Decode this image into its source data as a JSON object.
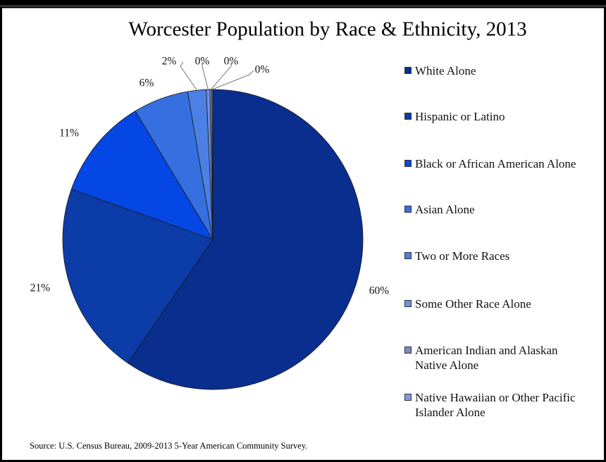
{
  "chart_data": {
    "type": "pie",
    "title": "Worcester Population by Race & Ethnicity, 2013",
    "source": "Source:  U.S. Census Bureau, 2009-2013 5-Year American Community Survey.",
    "categories": [
      "White Alone",
      "Hispanic or Latino",
      "Black or African American Alone",
      "Asian Alone",
      "Two or More Races",
      "Some Other Race Alone",
      "American Indian and Alaskan Native Alone",
      "Native Hawaiian or Other Pacific Islander Alone"
    ],
    "values": [
      60,
      21,
      11,
      6,
      2,
      0.4,
      0.2,
      0.1
    ],
    "value_labels": [
      "60%",
      "21%",
      "11%",
      "6%",
      "2%",
      "0%",
      "0%",
      "0%"
    ],
    "colors": [
      "#0a2e8e",
      "#0b3ca8",
      "#0547e4",
      "#356fe0",
      "#4d80e4",
      "#6f92e2",
      "#7c8cbe",
      "#8797e6"
    ],
    "legend": "right"
  }
}
